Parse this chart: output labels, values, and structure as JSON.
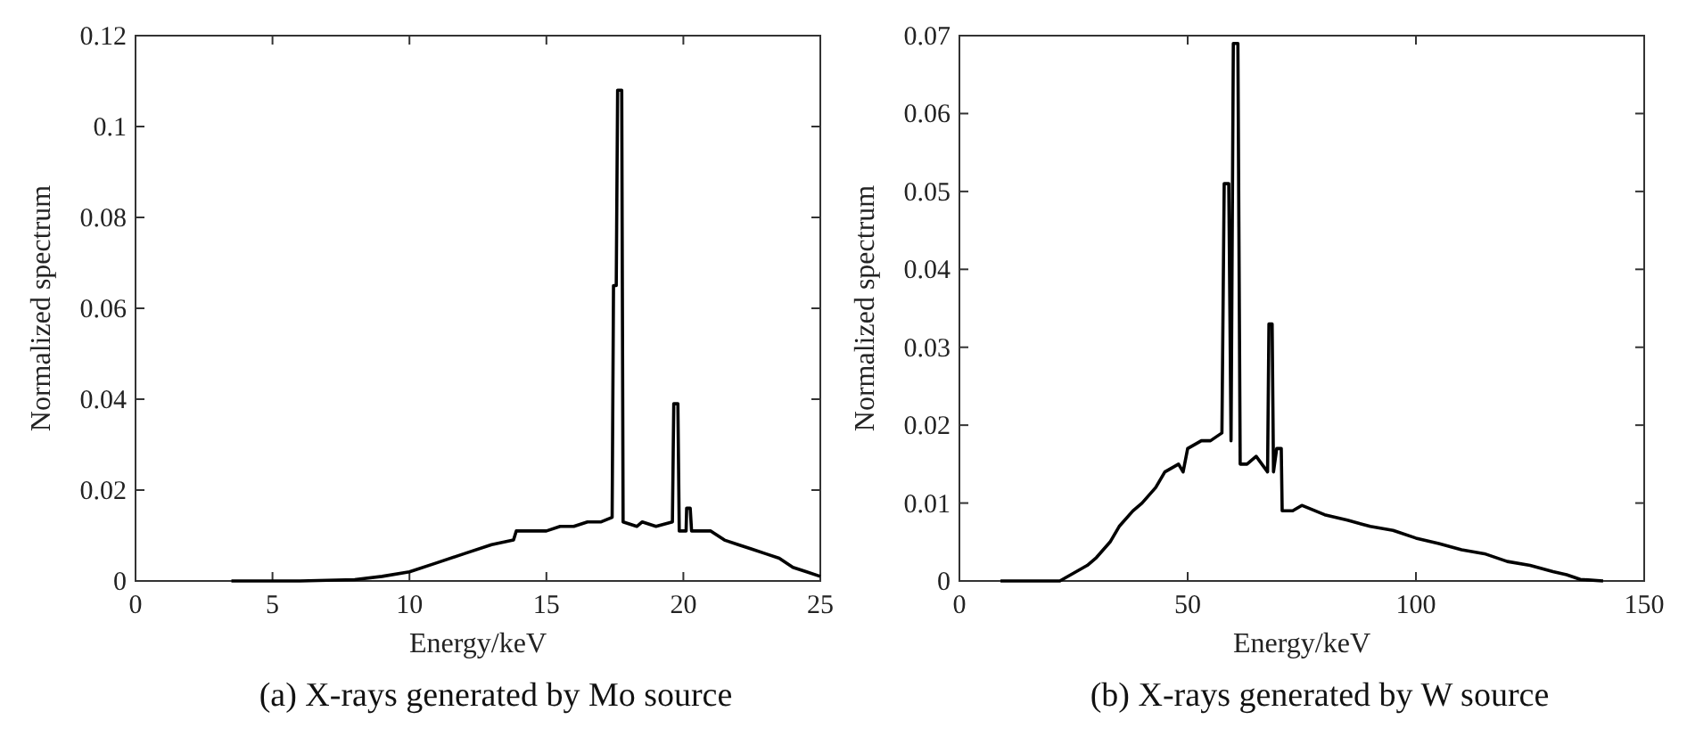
{
  "chart_data": [
    {
      "type": "line",
      "title": "(a) X-rays generated by Mo source",
      "xlabel": "Energy/keV",
      "ylabel": "Normalized spectrum",
      "xlim": [
        0,
        25
      ],
      "ylim": [
        0,
        0.12
      ],
      "xticks": [
        0,
        5,
        10,
        15,
        20,
        25
      ],
      "yticks": [
        0,
        0.02,
        0.04,
        0.06,
        0.08,
        {
          "value": 0.1,
          "label": "0.1"
        },
        0.12
      ],
      "grid": false,
      "marker": "none",
      "line_style": "solid",
      "series": [
        {
          "color": "#000000",
          "x": [
            3.5,
            6,
            8,
            9,
            10,
            11,
            12,
            13,
            13.8,
            13.9,
            14.5,
            15,
            15.5,
            16,
            16.5,
            17,
            17.4,
            17.45,
            17.55,
            17.6,
            17.75,
            17.8,
            18.3,
            18.5,
            19,
            19.6,
            19.65,
            19.8,
            19.85,
            20.1,
            20.12,
            20.25,
            20.3,
            21,
            21.5,
            22,
            22.5,
            23,
            23.5,
            24,
            24.5,
            25
          ],
          "values": [
            0,
            0,
            0.0003,
            0.001,
            0.002,
            0.004,
            0.006,
            0.008,
            0.009,
            0.011,
            0.011,
            0.011,
            0.012,
            0.012,
            0.013,
            0.013,
            0.014,
            0.065,
            0.065,
            0.108,
            0.108,
            0.013,
            0.012,
            0.013,
            0.012,
            0.013,
            0.039,
            0.039,
            0.011,
            0.011,
            0.016,
            0.016,
            0.011,
            0.011,
            0.009,
            0.008,
            0.007,
            0.006,
            0.005,
            0.003,
            0.002,
            0.001
          ]
        }
      ]
    },
    {
      "type": "line",
      "title": "(b) X-rays generated by W source",
      "xlabel": "Energy/keV",
      "ylabel": "Normalized spectrum",
      "xlim": [
        0,
        150
      ],
      "ylim": [
        0,
        0.07
      ],
      "xticks": [
        0,
        50,
        100,
        150
      ],
      "yticks": [
        0,
        0.01,
        0.02,
        0.03,
        0.04,
        0.05,
        0.06,
        0.07
      ],
      "grid": false,
      "marker": "none",
      "line_style": "solid",
      "series": [
        {
          "color": "#000000",
          "x": [
            9,
            22,
            25,
            28,
            30,
            33,
            35,
            38,
            40,
            43,
            45,
            48,
            49,
            50,
            53,
            55,
            57.5,
            58,
            59,
            59.5,
            60,
            61,
            61.5,
            63,
            65,
            67.5,
            67.8,
            68.5,
            68.8,
            69.5,
            70.5,
            70.7,
            73,
            75,
            80,
            85,
            90,
            95,
            100,
            105,
            110,
            115,
            120,
            125,
            130,
            133,
            136,
            141
          ],
          "values": [
            0,
            0,
            0.001,
            0.002,
            0.003,
            0.005,
            0.007,
            0.009,
            0.01,
            0.012,
            0.014,
            0.015,
            0.014,
            0.017,
            0.018,
            0.018,
            0.019,
            0.051,
            0.051,
            0.018,
            0.069,
            0.069,
            0.015,
            0.015,
            0.016,
            0.014,
            0.033,
            0.033,
            0.014,
            0.017,
            0.017,
            0.009,
            0.009,
            0.0097,
            0.0085,
            0.0078,
            0.007,
            0.0065,
            0.0055,
            0.0048,
            0.004,
            0.0035,
            0.0025,
            0.002,
            0.0012,
            0.0008,
            0.0002,
            0
          ]
        }
      ]
    }
  ]
}
